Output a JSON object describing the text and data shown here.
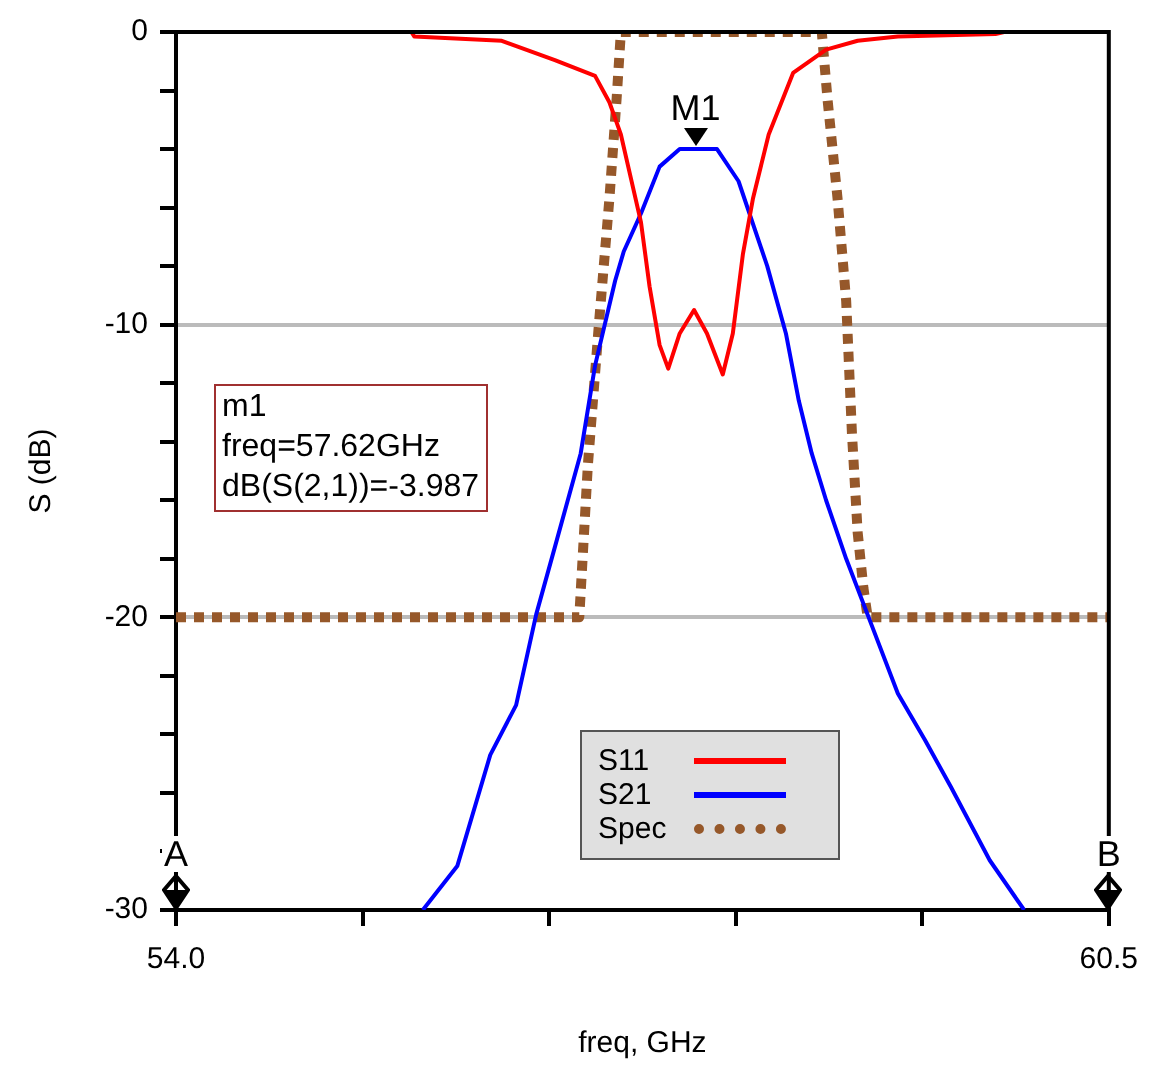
{
  "chart_data": {
    "type": "line",
    "xlabel": "freq, GHz",
    "ylabel": "S (dB)",
    "xlim": [
      54.0,
      60.5
    ],
    "ylim": [
      -30,
      0
    ],
    "xticks": [
      {
        "value": 54.0,
        "label": "54.0"
      },
      {
        "value": 55.3,
        "label": null
      },
      {
        "value": 56.6,
        "label": null
      },
      {
        "value": 57.9,
        "label": null
      },
      {
        "value": 59.2,
        "label": null
      },
      {
        "value": 60.5,
        "label": "60.5"
      }
    ],
    "yticks": [
      {
        "value": -30,
        "label": "-30"
      },
      {
        "value": -28,
        "label": null
      },
      {
        "value": -26,
        "label": null
      },
      {
        "value": -24,
        "label": null
      },
      {
        "value": -22,
        "label": null
      },
      {
        "value": -20,
        "label": "-20"
      },
      {
        "value": -18,
        "label": null
      },
      {
        "value": -16,
        "label": null
      },
      {
        "value": -14,
        "label": null
      },
      {
        "value": -12,
        "label": null
      },
      {
        "value": -10,
        "label": "-10"
      },
      {
        "value": -8,
        "label": null
      },
      {
        "value": -6,
        "label": null
      },
      {
        "value": -4,
        "label": null
      },
      {
        "value": -2,
        "label": null
      },
      {
        "value": 0,
        "label": "0"
      }
    ],
    "grid": "y",
    "legend": "bottom",
    "marker": "none",
    "series": [
      {
        "name": "S11",
        "color": "#ff0000",
        "line_style": "solid",
        "x": [
          54.0,
          55.64,
          55.66,
          56.27,
          56.64,
          56.92,
          57.02,
          57.1,
          57.17,
          57.24,
          57.3,
          57.37,
          57.43,
          57.51,
          57.61,
          57.7,
          57.81,
          57.88,
          57.95,
          58.02,
          58.13,
          58.3,
          58.53,
          58.75,
          59.03,
          59.71,
          59.77,
          60.5
        ],
        "values": [
          0,
          0,
          -0.15,
          -0.3,
          -0.96,
          -1.5,
          -2.4,
          -3.5,
          -5,
          -6.5,
          -8.7,
          -10.7,
          -11.5,
          -10.3,
          -9.5,
          -10.3,
          -11.7,
          -10.3,
          -7.6,
          -5.7,
          -3.5,
          -1.4,
          -0.6,
          -0.3,
          -0.15,
          -0.07,
          0,
          0
        ]
      },
      {
        "name": "S21",
        "color": "#0000ff",
        "line_style": "solid",
        "x": [
          55.72,
          55.96,
          56.19,
          56.37,
          56.51,
          56.64,
          56.82,
          56.92,
          57.06,
          57.12,
          57.24,
          57.37,
          57.51,
          57.62,
          57.77,
          57.92,
          58.12,
          58.25,
          58.34,
          58.43,
          58.53,
          58.67,
          58.85,
          59.03,
          59.22,
          59.4,
          59.67,
          59.91
        ],
        "values": [
          -30,
          -28.5,
          -24.7,
          -23,
          -19.9,
          -17.6,
          -14.4,
          -11.4,
          -8.5,
          -7.5,
          -6.2,
          -4.6,
          -4.0,
          -4.0,
          -4.0,
          -5.1,
          -8,
          -10.3,
          -12.6,
          -14.4,
          -16,
          -18,
          -20.3,
          -22.6,
          -24.2,
          -25.8,
          -28.3,
          -30
        ]
      },
      {
        "name": "Spec",
        "color": "#96582a",
        "line_style": "dotted",
        "x": [
          54.0,
          56.81,
          56.87,
          56.95,
          57.02,
          57.07,
          57.1,
          58.5,
          58.54,
          58.61,
          58.67,
          58.71,
          58.75,
          58.79,
          58.82,
          60.5
        ],
        "values": [
          -20,
          -20,
          -14.8,
          -9.8,
          -5.7,
          -2.3,
          0,
          0,
          -2.3,
          -5.7,
          -9.2,
          -13.7,
          -17.1,
          -19.0,
          -20,
          -20
        ]
      }
    ],
    "annotations": [
      "m1",
      "freq=57.62GHz",
      "dB(S(2,1))=-3.987",
      {
        "text": "M1",
        "x": 57.62,
        "y": -4.0
      },
      "A",
      "B"
    ]
  }
}
